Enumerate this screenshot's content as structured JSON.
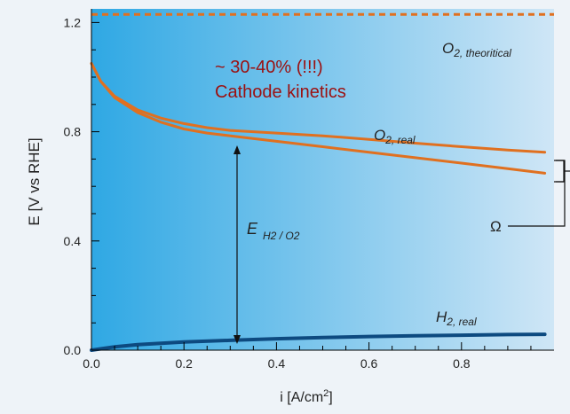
{
  "chart_data": {
    "type": "line",
    "title": "",
    "xlabel": "i [A/cm2]",
    "xlabel_main": "i [A/cm",
    "xlabel_sup": "2",
    "xlabel_tail": "]",
    "ylabel": "E [V vs RHE]",
    "xlim": [
      0,
      1.0
    ],
    "ylim": [
      0,
      1.25
    ],
    "x_ticks": [
      0.0,
      0.2,
      0.4,
      0.6,
      0.8
    ],
    "x_tick_labels": [
      "0.0",
      "0.2",
      "0.4",
      "0.6",
      "0.8"
    ],
    "y_ticks": [
      0.0,
      0.4,
      0.8,
      1.2
    ],
    "y_tick_labels": [
      "0.0",
      "0.4",
      "0.8",
      "1.2"
    ],
    "grid": false,
    "background": "blue gradient",
    "series": [
      {
        "key": "o2_theoretical",
        "style": "dashed",
        "color": "#e07020",
        "x": [
          0,
          1.0
        ],
        "y": [
          1.23,
          1.23
        ]
      },
      {
        "key": "o2_real_upper",
        "style": "solid",
        "color": "#e07020",
        "x": [
          0,
          0.02,
          0.05,
          0.1,
          0.15,
          0.2,
          0.25,
          0.3,
          0.4,
          0.5,
          0.6,
          0.7,
          0.8,
          0.9,
          0.98
        ],
        "y": [
          1.05,
          0.985,
          0.93,
          0.88,
          0.85,
          0.83,
          0.815,
          0.805,
          0.795,
          0.785,
          0.772,
          0.758,
          0.745,
          0.733,
          0.725
        ]
      },
      {
        "key": "o2_real_lower",
        "style": "solid",
        "color": "#e07020",
        "x": [
          0,
          0.02,
          0.05,
          0.1,
          0.15,
          0.2,
          0.25,
          0.3,
          0.4,
          0.5,
          0.6,
          0.7,
          0.8,
          0.9,
          0.98
        ],
        "y": [
          1.05,
          0.985,
          0.925,
          0.87,
          0.835,
          0.81,
          0.795,
          0.785,
          0.765,
          0.745,
          0.725,
          0.705,
          0.685,
          0.665,
          0.648
        ]
      },
      {
        "key": "h2_real",
        "style": "solid",
        "color": "#0d4a80",
        "x": [
          0,
          0.05,
          0.1,
          0.2,
          0.3,
          0.4,
          0.5,
          0.6,
          0.7,
          0.8,
          0.9,
          0.98
        ],
        "y": [
          0.0,
          0.012,
          0.02,
          0.03,
          0.036,
          0.042,
          0.046,
          0.05,
          0.053,
          0.055,
          0.057,
          0.058
        ]
      }
    ],
    "annotations": {
      "o2_theoretical": {
        "main": "O",
        "sub": "2, theoritical"
      },
      "o2_real": {
        "main": "O",
        "sub": "2, real"
      },
      "h2_real": {
        "main": "H",
        "sub": "2, real"
      },
      "e_label": {
        "main": "E",
        "sub": "H2 / O2"
      },
      "omega": "Ω",
      "loss_percent": "~ 30-40% (!!!)",
      "loss_cause": "Cathode kinetics"
    },
    "colors": {
      "o2_curves": "#e07020",
      "h2_curve": "#0d4a80",
      "annotation_text": "#9b1010",
      "gradient_left": "#2fa8e4",
      "gradient_right": "#cfe6f6"
    }
  }
}
